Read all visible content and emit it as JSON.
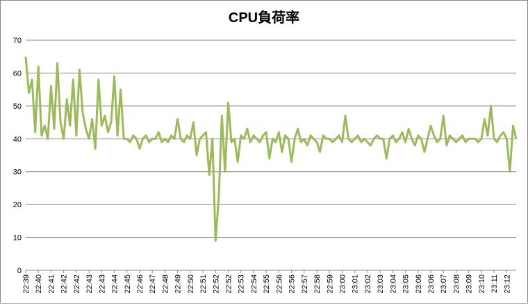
{
  "chart_data": {
    "type": "line",
    "title": "CPU負荷率",
    "categories": [
      "22:39",
      null,
      null,
      null,
      "22:40",
      null,
      null,
      null,
      "22:41",
      null,
      null,
      null,
      "22:42",
      null,
      null,
      null,
      "22:42",
      null,
      null,
      null,
      "22:43",
      null,
      null,
      null,
      "22:43",
      null,
      null,
      null,
      "22:44",
      null,
      null,
      null,
      "22:45",
      null,
      null,
      null,
      "22:46",
      null,
      null,
      null,
      "22:47",
      null,
      null,
      null,
      "22:48",
      null,
      null,
      null,
      "22:49",
      null,
      null,
      null,
      "22:50",
      null,
      null,
      null,
      "22:51",
      null,
      null,
      null,
      "22:52",
      null,
      null,
      null,
      "22:52",
      null,
      null,
      null,
      "22:53",
      null,
      null,
      null,
      "22:54",
      null,
      null,
      null,
      "22:55",
      null,
      null,
      null,
      "22:56",
      null,
      null,
      null,
      "22:56",
      null,
      null,
      null,
      "22:57",
      null,
      null,
      null,
      "22:58",
      null,
      null,
      null,
      "22:59",
      null,
      null,
      null,
      "23:00",
      null,
      null,
      null,
      "23:01",
      null,
      null,
      null,
      "23:02",
      null,
      null,
      null,
      "23:03",
      null,
      null,
      null,
      "23:04",
      null,
      null,
      null,
      "23:05",
      null,
      null,
      null,
      "23:06",
      null,
      null,
      null,
      "23:06",
      null,
      null,
      null,
      "23:07",
      null,
      null,
      null,
      "23:08",
      null,
      null,
      null,
      "23:09",
      null,
      null,
      null,
      "23:10",
      null,
      null,
      null,
      "23:11",
      null,
      null,
      null,
      "23:12",
      null,
      null,
      null
    ],
    "series": [
      {
        "name": "CPU負荷率",
        "color": "#9bbb59",
        "values": [
          65,
          54,
          58,
          42,
          62,
          41,
          44,
          40,
          56,
          43,
          63,
          45,
          40,
          52,
          44,
          58,
          41,
          61,
          48,
          43,
          40,
          46,
          37,
          58,
          44,
          47,
          42,
          45,
          59,
          41,
          55,
          40,
          40,
          39,
          41,
          40,
          37,
          40,
          41,
          39,
          40,
          40,
          42,
          39,
          40,
          39,
          41,
          40,
          46,
          40,
          39,
          41,
          40,
          45,
          35,
          40,
          41,
          42,
          29,
          40,
          9,
          22,
          47,
          30,
          51,
          39,
          40,
          33,
          41,
          40,
          43,
          39,
          41,
          40,
          39,
          41,
          42,
          34,
          40,
          39,
          42,
          36,
          41,
          40,
          33,
          40,
          43,
          39,
          40,
          38,
          41,
          40,
          39,
          36,
          41,
          40,
          40,
          39,
          40,
          41,
          39,
          47,
          40,
          39,
          40,
          41,
          39,
          40,
          39,
          38,
          40,
          41,
          40,
          40,
          34,
          40,
          41,
          39,
          40,
          42,
          39,
          43,
          40,
          38,
          41,
          40,
          36,
          40,
          44,
          41,
          39,
          40,
          47,
          38,
          41,
          40,
          39,
          40,
          41,
          39,
          40,
          40,
          40,
          39,
          40,
          46,
          41,
          50,
          40,
          39,
          41,
          42,
          40,
          30,
          44,
          40
        ]
      }
    ],
    "ylim": [
      0,
      70
    ],
    "yticks": [
      0,
      10,
      20,
      30,
      40,
      50,
      60,
      70
    ],
    "grid": true
  }
}
